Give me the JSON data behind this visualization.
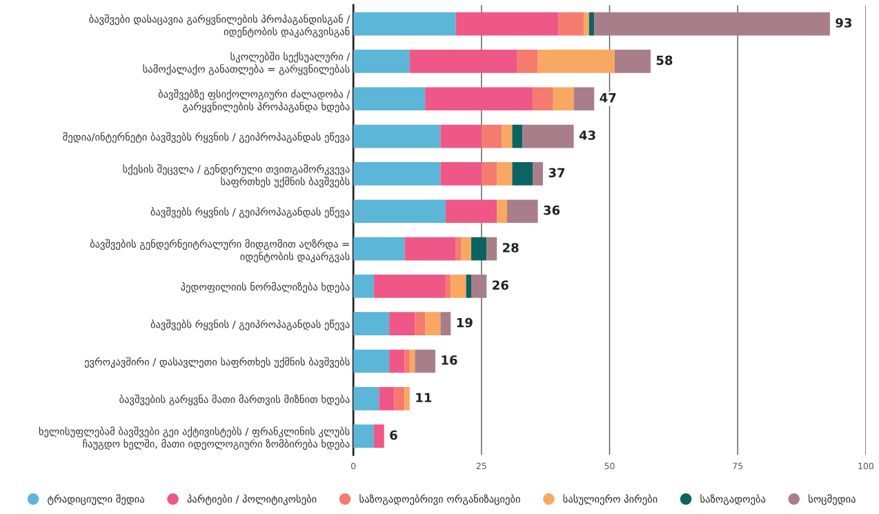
{
  "chart_data": {
    "type": "bar",
    "orientation": "horizontal",
    "stacked": true,
    "categories": [
      "ბავშვები დასაცავია გარყვნილების პროპაგანდისგან /\nიდენტობის დაკარგვისგან",
      "სკოლებში სექსუალური /\nსამოქალაქო განათლება = გარყვნილებას",
      "ბავშვებზე ფსიქოლოგიური ძალადობა /\nგარყვნილების პროპაგანდა ხდება",
      "მედია/ინტერნეტი ბავშვებს რყვნის / გეიპროპაგანდას ეწევა",
      "სქესის შეცვლა / გენდერული თვითგამორკვევა\nსაფრთხეს უქმნის ბავშვებს",
      "ბავშვებს რყვნის / გეიპროპაგანდას ეწევა",
      "ბავშვების გენდერნეიტრალური მიდგომით აღზრდა =\nიდენტობის დაკარგვას",
      "პედოფილიის ნორმალიზება ხდება",
      "ბავშვებს რყვნის / გეიპროპაგანდას ეწევა",
      "ევროკავშირი / დასავლეთი საფრთხეს უქმნის ბავშვებს",
      "ბავშვების გარყვნა მათი მართვის მიზნით ხდება",
      "ხელისუფლებამ ბავშვები გეი აქტივისტებს / ფრანკლინის კლუბს\nჩაუგდო ხელში, მათი იდეოლოგიური ზომბირება ხდება"
    ],
    "series": [
      {
        "name": "ტრადიციული მედია",
        "color": "#5bb6d8",
        "values": [
          20,
          11,
          14,
          17,
          17,
          18,
          10,
          4,
          7,
          7,
          5,
          4
        ]
      },
      {
        "name": "პარტიები / პოლიტიკოსები",
        "color": "#ef5787",
        "values": [
          20,
          21,
          21,
          8,
          8,
          10,
          10,
          14,
          5,
          3,
          3,
          2
        ]
      },
      {
        "name": "საზოგადოებრივი ორგანიზაციები",
        "color": "#f47b6e",
        "values": [
          5,
          4,
          4,
          4,
          3,
          0,
          1,
          1,
          2,
          1,
          2,
          0
        ]
      },
      {
        "name": "სასულიერო პირები",
        "color": "#f9a862",
        "values": [
          1,
          15,
          4,
          2,
          3,
          2,
          2,
          3,
          3,
          1,
          1,
          0
        ]
      },
      {
        "name": "საზოგადოება",
        "color": "#0b6461",
        "values": [
          1,
          0,
          0,
          2,
          4,
          0,
          3,
          1,
          0,
          0,
          0,
          0
        ]
      },
      {
        "name": "სოცმედია",
        "color": "#a87e89",
        "values": [
          46,
          7,
          4,
          10,
          2,
          6,
          2,
          3,
          2,
          4,
          0,
          0
        ]
      }
    ],
    "totals": [
      "93",
      "58",
      "47",
      "43",
      "37",
      "36",
      "28",
      "26",
      "19",
      "16",
      "11",
      "6"
    ],
    "xlim": [
      0,
      100
    ],
    "xticks": [
      0,
      25,
      50,
      75,
      100
    ],
    "grid": "x",
    "legend": "bottom",
    "marker": "circle"
  }
}
